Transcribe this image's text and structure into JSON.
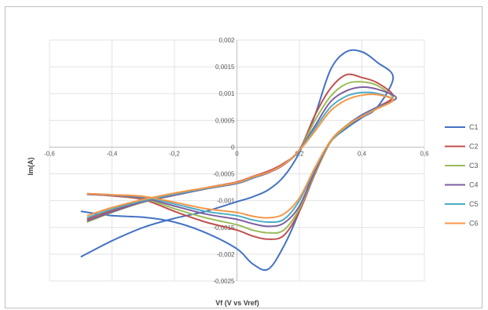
{
  "chart_data": {
    "type": "line",
    "title": "",
    "xlabel": "Vf (V vs Vref)",
    "ylabel": "Im(A)",
    "xlim": [
      -0.6,
      0.6
    ],
    "ylim": [
      -0.0025,
      0.002
    ],
    "x_ticks": [
      -0.6,
      -0.4,
      -0.2,
      0,
      0.2,
      0.4,
      0.6
    ],
    "x_tick_labels": [
      "-0,6",
      "-0,4",
      "-0,2",
      "0",
      "0,2",
      "0,4",
      "0,6"
    ],
    "y_ticks": [
      0.002,
      0.0015,
      0.001,
      0.0005,
      0,
      -0.0005,
      -0.001,
      -0.0015,
      -0.002,
      -0.0025
    ],
    "y_tick_labels": [
      "0,002",
      "0,0015",
      "0,001",
      "0,0005",
      "0",
      "-0,0005",
      "-0,001",
      "-0,0015",
      "-0,002",
      "-0,0025"
    ],
    "grid": true,
    "legend_position": "right",
    "series": [
      {
        "name": "C1",
        "color": "#4472c4",
        "x": [
          -0.5,
          -0.4,
          -0.3,
          -0.2,
          -0.1,
          0,
          0.05,
          0.1,
          0.15,
          0.2,
          0.25,
          0.3,
          0.35,
          0.4,
          0.45,
          0.5,
          0.45,
          0.4,
          0.35,
          0.3,
          0.25,
          0.2,
          0.15,
          0.1,
          0.05,
          0,
          -0.1,
          -0.2,
          -0.3,
          -0.4,
          -0.5
        ],
        "y": [
          -0.00205,
          -0.00175,
          -0.0015,
          -0.00133,
          -0.0012,
          -0.00102,
          -0.00093,
          -0.0008,
          -0.00055,
          -0.0001,
          0.0006,
          0.00145,
          0.00178,
          0.00178,
          0.00158,
          0.0013,
          0.00075,
          0.00055,
          0.00035,
          0.0001,
          -0.0004,
          -0.0012,
          -0.00185,
          -0.00228,
          -0.00218,
          -0.0019,
          -0.0016,
          -0.0014,
          -0.00131,
          -0.00128,
          -0.0012
        ]
      },
      {
        "name": "C2",
        "color": "#c0504d",
        "x": [
          -0.48,
          -0.4,
          -0.3,
          -0.2,
          -0.1,
          0,
          0.05,
          0.1,
          0.15,
          0.2,
          0.25,
          0.3,
          0.35,
          0.4,
          0.45,
          0.5,
          0.45,
          0.4,
          0.35,
          0.3,
          0.25,
          0.2,
          0.15,
          0.1,
          0.05,
          0,
          -0.1,
          -0.2,
          -0.3,
          -0.4,
          -0.48
        ],
        "y": [
          -0.00135,
          -0.00118,
          -0.00101,
          -0.00088,
          -0.00076,
          -0.00065,
          -0.00055,
          -0.00045,
          -0.0003,
          -5e-05,
          0.0006,
          0.0011,
          0.00135,
          0.0013,
          0.0012,
          0.00095,
          0.00075,
          0.0006,
          0.0004,
          0.0001,
          -0.0005,
          -0.0012,
          -0.00165,
          -0.00172,
          -0.00166,
          -0.00155,
          -0.0014,
          -0.0012,
          -0.00098,
          -0.00091,
          -0.00088
        ]
      },
      {
        "name": "C3",
        "color": "#9bbb59",
        "x": [
          -0.48,
          -0.4,
          -0.3,
          -0.2,
          -0.1,
          0,
          0.05,
          0.1,
          0.15,
          0.2,
          0.25,
          0.3,
          0.35,
          0.4,
          0.45,
          0.5,
          0.45,
          0.4,
          0.35,
          0.3,
          0.25,
          0.2,
          0.15,
          0.1,
          0.05,
          0,
          -0.1,
          -0.2,
          -0.3,
          -0.4,
          -0.48
        ],
        "y": [
          -0.0014,
          -0.00122,
          -0.00103,
          -0.0009,
          -0.00078,
          -0.00068,
          -0.00058,
          -0.00048,
          -0.00032,
          -6e-05,
          0.0005,
          0.00095,
          0.00118,
          0.00122,
          0.00115,
          0.0009,
          0.00072,
          0.00058,
          0.00038,
          0.0001,
          -0.00048,
          -0.00115,
          -0.00155,
          -0.0016,
          -0.00155,
          -0.00145,
          -0.00132,
          -0.00115,
          -0.00096,
          -0.0009,
          -0.00088
        ]
      },
      {
        "name": "C4",
        "color": "#7e5ea0",
        "x": [
          -0.48,
          -0.4,
          -0.3,
          -0.2,
          -0.1,
          0,
          0.05,
          0.1,
          0.15,
          0.2,
          0.25,
          0.3,
          0.35,
          0.4,
          0.45,
          0.51,
          0.45,
          0.4,
          0.35,
          0.3,
          0.25,
          0.2,
          0.15,
          0.1,
          0.05,
          0,
          -0.1,
          -0.2,
          -0.3,
          -0.4,
          -0.48
        ],
        "y": [
          -0.00138,
          -0.00121,
          -0.00102,
          -0.0009,
          -0.00078,
          -0.00068,
          -0.00058,
          -0.00048,
          -0.00033,
          -6e-05,
          0.0004,
          0.00085,
          0.00105,
          0.00112,
          0.00108,
          0.00092,
          0.00075,
          0.0006,
          0.0004,
          0.00012,
          -0.00045,
          -0.0011,
          -0.00142,
          -0.00148,
          -0.00143,
          -0.00135,
          -0.00125,
          -0.0011,
          -0.00095,
          -0.0009,
          -0.00088
        ]
      },
      {
        "name": "C5",
        "color": "#4bacc6",
        "x": [
          -0.48,
          -0.4,
          -0.3,
          -0.2,
          -0.1,
          0,
          0.05,
          0.1,
          0.15,
          0.2,
          0.25,
          0.3,
          0.35,
          0.4,
          0.45,
          0.5,
          0.45,
          0.4,
          0.35,
          0.3,
          0.25,
          0.2,
          0.15,
          0.1,
          0.05,
          0,
          -0.1,
          -0.2,
          -0.3,
          -0.4,
          -0.48
        ],
        "y": [
          -0.00132,
          -0.00116,
          -0.001,
          -0.00088,
          -0.00077,
          -0.00067,
          -0.00057,
          -0.00047,
          -0.00032,
          -6e-05,
          0.00035,
          0.00075,
          0.00095,
          0.00102,
          0.001,
          0.00088,
          0.00073,
          0.00058,
          0.0004,
          0.00012,
          -0.0004,
          -0.001,
          -0.00135,
          -0.0014,
          -0.00136,
          -0.00128,
          -0.0012,
          -0.00106,
          -0.00093,
          -0.00089,
          -0.00087
        ]
      },
      {
        "name": "C6",
        "color": "#f79646",
        "x": [
          -0.48,
          -0.4,
          -0.3,
          -0.2,
          -0.1,
          0,
          0.05,
          0.1,
          0.15,
          0.2,
          0.25,
          0.3,
          0.35,
          0.4,
          0.45,
          0.5,
          0.45,
          0.4,
          0.35,
          0.3,
          0.25,
          0.2,
          0.15,
          0.1,
          0.05,
          0,
          -0.1,
          -0.2,
          -0.3,
          -0.4,
          -0.48
        ],
        "y": [
          -0.00128,
          -0.00113,
          -0.00098,
          -0.00086,
          -0.00076,
          -0.00066,
          -0.00056,
          -0.00047,
          -0.00032,
          -6e-05,
          0.0003,
          0.00068,
          0.00088,
          0.00097,
          0.00098,
          0.00088,
          0.00072,
          0.00057,
          0.0004,
          0.00012,
          -0.00038,
          -0.00095,
          -0.00125,
          -0.00132,
          -0.00129,
          -0.00122,
          -0.00115,
          -0.00103,
          -0.00092,
          -0.00089,
          -0.00087
        ]
      }
    ]
  }
}
